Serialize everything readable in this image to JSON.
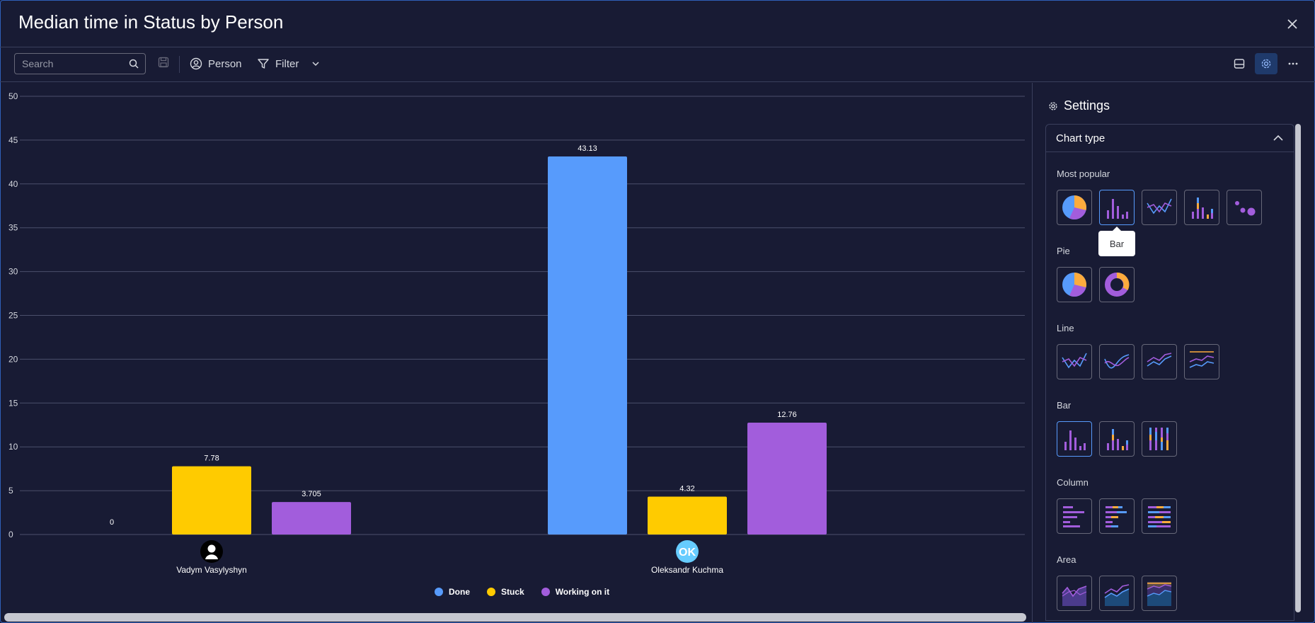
{
  "header": {
    "title": "Median time in Status by Person"
  },
  "toolbar": {
    "search_placeholder": "Search",
    "person_label": "Person",
    "filter_label": "Filter"
  },
  "settings": {
    "title": "Settings",
    "section_title": "Chart type",
    "tooltip": "Bar",
    "groups": [
      {
        "label": "Most popular",
        "items": [
          "pie",
          "bar",
          "line",
          "stacked-bar",
          "scatter"
        ]
      },
      {
        "label": "Pie",
        "items": [
          "pie",
          "donut"
        ]
      },
      {
        "label": "Line",
        "items": [
          "line",
          "smooth-line",
          "stacked-line",
          "line-target"
        ]
      },
      {
        "label": "Bar",
        "items": [
          "bar",
          "stacked-bar",
          "full-stacked-bar"
        ]
      },
      {
        "label": "Column",
        "items": [
          "column",
          "stacked-column",
          "full-stacked-column"
        ]
      },
      {
        "label": "Area",
        "items": [
          "area",
          "stacked-area",
          "full-stacked-area"
        ]
      }
    ]
  },
  "colors": {
    "done": "#579bfc",
    "stuck": "#ffcb00",
    "working": "#a25ddc"
  },
  "chart_data": {
    "type": "bar",
    "title": "",
    "xlabel": "",
    "ylabel": "",
    "ylim": [
      0,
      50
    ],
    "yticks": [
      0,
      5,
      10,
      15,
      20,
      25,
      30,
      35,
      40,
      45,
      50
    ],
    "categories": [
      "Vadym Vasylyshyn",
      "Oleksandr Kuchma"
    ],
    "avatars": [
      "",
      "OK"
    ],
    "series": [
      {
        "name": "Done",
        "color": "#579bfc",
        "values": [
          0,
          43.13
        ],
        "labels": [
          "0",
          "43.13"
        ]
      },
      {
        "name": "Stuck",
        "color": "#ffcb00",
        "values": [
          7.78,
          4.32
        ],
        "labels": [
          "7.78",
          "4.32"
        ]
      },
      {
        "name": "Working on it",
        "color": "#a25ddc",
        "values": [
          3.705,
          12.76
        ],
        "labels": [
          "3.705",
          "12.76"
        ]
      }
    ],
    "legend": "bottom",
    "grid": true
  }
}
